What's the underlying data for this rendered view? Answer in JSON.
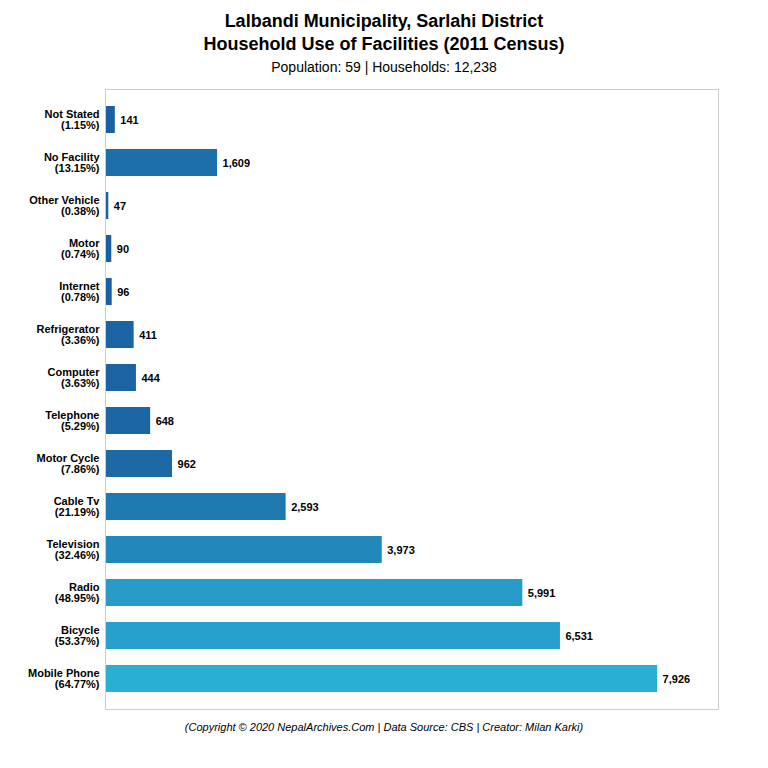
{
  "chart_data": {
    "type": "bar",
    "title": "Lalbandi Municipality, Sarlahi District\nHousehold Use of Facilities (2011 Census)",
    "subtitle": "Population: 59 | Households: 12,238",
    "caption": "(Copyright © 2020 NepalArchives.Com | Data Source: CBS | Creator: Milan Karki)",
    "orientation": "horizontal",
    "categories": [
      "Not Stated\n(1.15%)",
      "No Facility\n(13.15%)",
      "Other Vehicle\n(0.38%)",
      "Motor\n(0.74%)",
      "Internet\n(0.78%)",
      "Refrigerator\n(3.36%)",
      "Computer\n(3.63%)",
      "Telephone\n(5.29%)",
      "Motor Cycle\n(7.86%)",
      "Cable Tv\n(21.19%)",
      "Television\n(32.46%)",
      "Radio\n(48.95%)",
      "Bicycle\n(53.37%)",
      "Mobile Phone\n(64.77%)"
    ],
    "values": [
      141,
      1609,
      47,
      90,
      96,
      411,
      444,
      648,
      962,
      2593,
      3973,
      5991,
      6531,
      7926
    ],
    "value_labels": [
      "141",
      "1,609",
      "47",
      "90",
      "96",
      "411",
      "444",
      "648",
      "962",
      "2,593",
      "3,973",
      "5,991",
      "6,531",
      "7,926"
    ],
    "colors": [
      "#1a60a1",
      "#1d6fab",
      "#1a5fa0",
      "#1a60a1",
      "#1a60a1",
      "#1b63a3",
      "#1b63a3",
      "#1b66a4",
      "#1c69a6",
      "#1f79b1",
      "#2287ba",
      "#269bc7",
      "#27a1cb",
      "#2aafd4"
    ],
    "xlim": [
      0,
      8800
    ],
    "data_labels": true,
    "tick_labels": "y",
    "grid": false
  }
}
